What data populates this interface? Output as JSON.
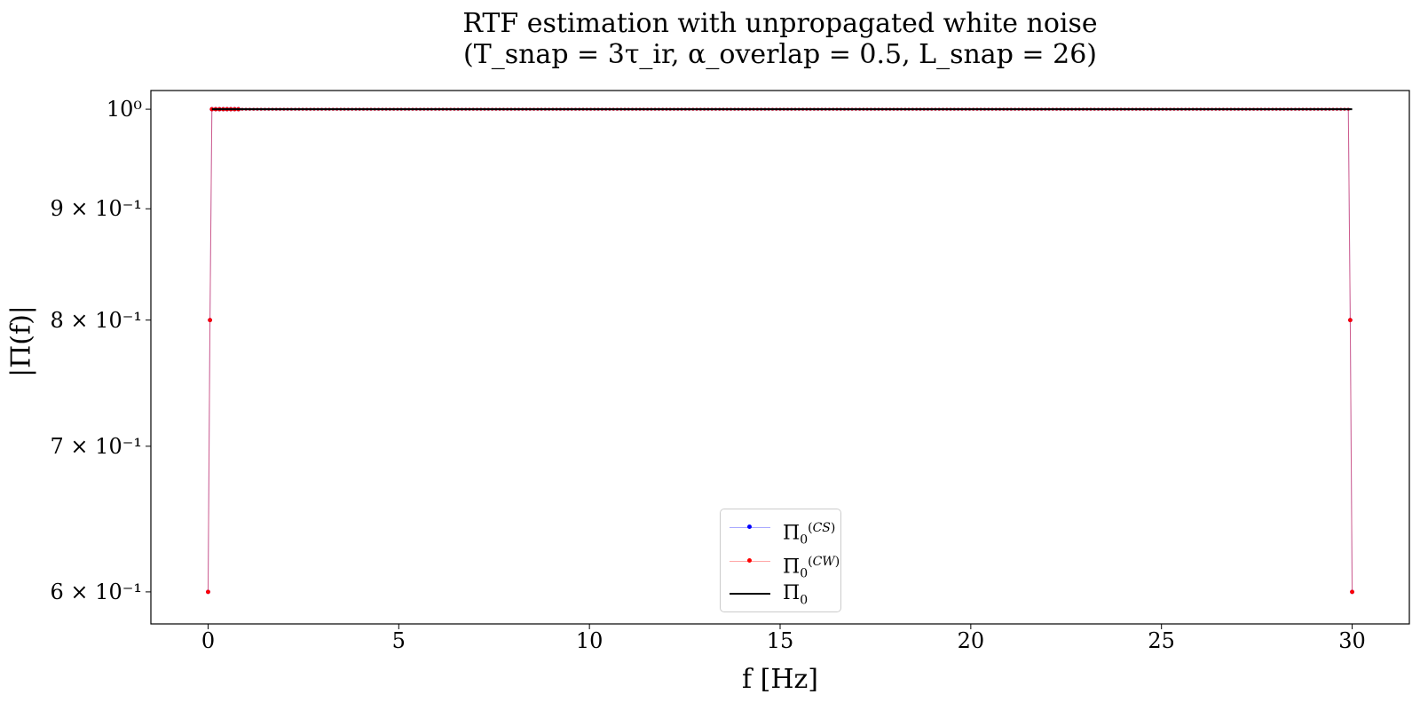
{
  "chart_data": {
    "type": "line",
    "title_line1": "RTF estimation with unpropagated white noise",
    "title_line2": "(T_snap = 3τ_ir,   α_overlap = 0.5,   L_snap = 26)",
    "xlabel": "f [Hz]",
    "ylabel": "|Π(f)|",
    "xlim": [
      -1.5,
      31.5
    ],
    "ylim": [
      0.58,
      1.02
    ],
    "yscale": "log",
    "grid": false,
    "legend_position": "lower center",
    "x_ticks": [
      0,
      5,
      10,
      15,
      20,
      25,
      30
    ],
    "x_tick_labels": [
      "0",
      "5",
      "10",
      "15",
      "20",
      "25",
      "30"
    ],
    "y_ticks": [
      0.6,
      0.7,
      0.8,
      0.9,
      1.0
    ],
    "y_tick_labels": [
      "6 × 10⁻¹",
      "7 × 10⁻¹",
      "8 × 10⁻¹",
      "9 × 10⁻¹",
      "10⁰"
    ],
    "series": [
      {
        "name": "Π₀^(CS)",
        "color": "#0000ff",
        "style": "line-with-dots",
        "points": [
          [
            0.0,
            0.6
          ],
          [
            0.05,
            0.8
          ],
          [
            0.1,
            1.0
          ],
          [
            29.9,
            1.0
          ],
          [
            29.95,
            0.8
          ],
          [
            30.0,
            0.6
          ]
        ]
      },
      {
        "name": "Π₀^(CW)",
        "color": "#ff0000",
        "style": "line-with-dots",
        "points": [
          [
            0.0,
            0.6
          ],
          [
            0.05,
            0.8
          ],
          [
            0.1,
            1.0
          ],
          [
            29.9,
            1.0
          ],
          [
            29.95,
            0.8
          ],
          [
            30.0,
            0.6
          ]
        ]
      },
      {
        "name": "Π₀",
        "color": "#000000",
        "style": "solid",
        "points": [
          [
            0.1,
            1.0
          ],
          [
            30.0,
            1.0
          ]
        ]
      }
    ]
  }
}
